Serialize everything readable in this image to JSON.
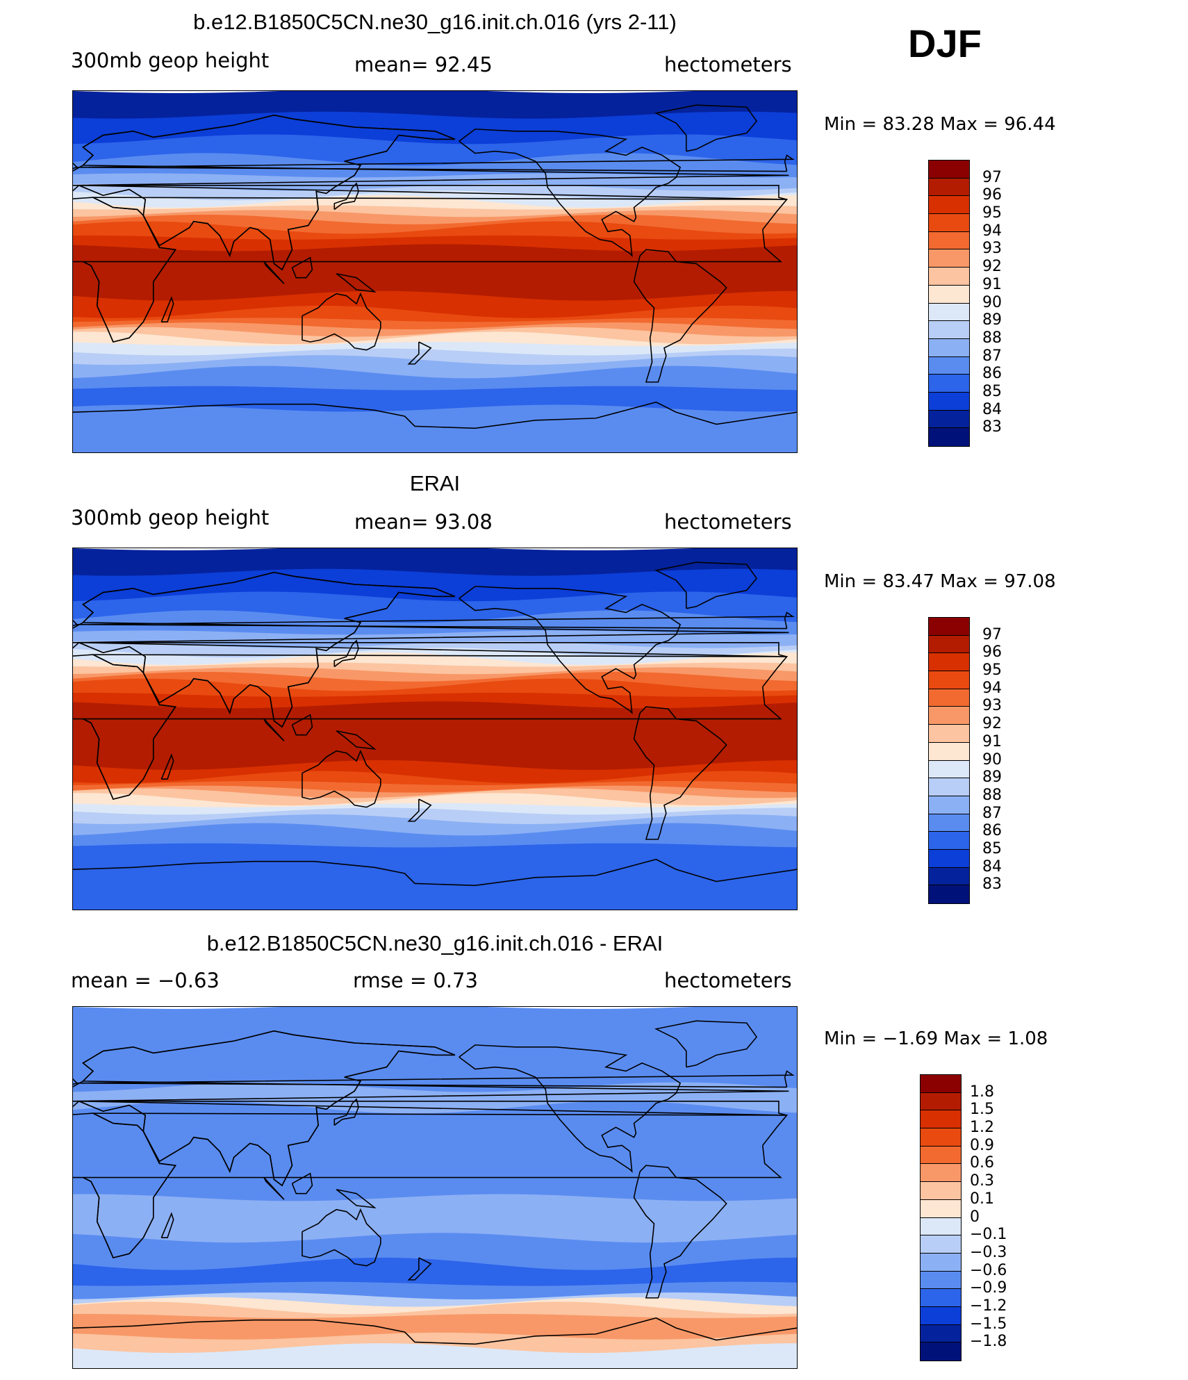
{
  "season": "DJF",
  "panels": [
    {
      "id": "model",
      "title": "b.e12.B1850C5CN.ne30_g16.init.ch.016 (yrs 2-11)",
      "left_label": "300mb geop height",
      "center_label": "mean=   92.45",
      "right_label": "hectometers",
      "min_max": "Min =    83.28  Max =    96.44",
      "colorbar": {
        "labels": [
          "97",
          "96",
          "95",
          "94",
          "93",
          "92",
          "91",
          "90",
          "89",
          "88",
          "87",
          "86",
          "85",
          "84",
          "83"
        ],
        "colors": [
          "#8b0000",
          "#b31c00",
          "#d83000",
          "#e84a10",
          "#f26a30",
          "#f89868",
          "#fcc4a0",
          "#fde6d2",
          "#dce8f8",
          "#b8cef6",
          "#8cb0f4",
          "#5a8cf0",
          "#2c64ea",
          "#0c3ed8",
          "#04229c",
          "#00127a"
        ]
      },
      "bands": [
        {
          "lat": 90,
          "color": "#04229c"
        },
        {
          "lat": 78,
          "color": "#0c3ed8"
        },
        {
          "lat": 66,
          "color": "#2c64ea"
        },
        {
          "lat": 56,
          "color": "#5a8cf0"
        },
        {
          "lat": 48,
          "color": "#8cb0f4"
        },
        {
          "lat": 42,
          "color": "#b8cef6"
        },
        {
          "lat": 38,
          "color": "#dce8f8"
        },
        {
          "lat": 35,
          "color": "#fde6d2"
        },
        {
          "lat": 32,
          "color": "#fcc4a0"
        },
        {
          "lat": 29,
          "color": "#f89868"
        },
        {
          "lat": 26,
          "color": "#f26a30"
        },
        {
          "lat": 22,
          "color": "#e84a10"
        },
        {
          "lat": 17,
          "color": "#d83000"
        },
        {
          "lat": 12,
          "color": "#b31c00"
        },
        {
          "lat": -12,
          "color": "#d83000"
        },
        {
          "lat": -20,
          "color": "#e84a10"
        },
        {
          "lat": -24,
          "color": "#f26a30"
        },
        {
          "lat": -27,
          "color": "#f89868"
        },
        {
          "lat": -30,
          "color": "#fcc4a0"
        },
        {
          "lat": -33,
          "color": "#fde6d2"
        },
        {
          "lat": -36,
          "color": "#dce8f8"
        },
        {
          "lat": -40,
          "color": "#b8cef6"
        },
        {
          "lat": -44,
          "color": "#8cb0f4"
        },
        {
          "lat": -50,
          "color": "#5a8cf0"
        },
        {
          "lat": -58,
          "color": "#2c64ea"
        },
        {
          "lat": -68,
          "color": "#5a8cf0"
        }
      ]
    },
    {
      "id": "obs",
      "title": "ERAI",
      "left_label": "300mb geop height",
      "center_label": "mean=   93.08",
      "right_label": "hectometers",
      "min_max": "Min =    83.47  Max =    97.08",
      "colorbar": {
        "labels": [
          "97",
          "96",
          "95",
          "94",
          "93",
          "92",
          "91",
          "90",
          "89",
          "88",
          "87",
          "86",
          "85",
          "84",
          "83"
        ],
        "colors": [
          "#8b0000",
          "#b31c00",
          "#d83000",
          "#e84a10",
          "#f26a30",
          "#f89868",
          "#fcc4a0",
          "#fde6d2",
          "#dce8f8",
          "#b8cef6",
          "#8cb0f4",
          "#5a8cf0",
          "#2c64ea",
          "#0c3ed8",
          "#04229c",
          "#00127a"
        ]
      },
      "bands": [
        {
          "lat": 90,
          "color": "#04229c"
        },
        {
          "lat": 78,
          "color": "#0c3ed8"
        },
        {
          "lat": 66,
          "color": "#2c64ea"
        },
        {
          "lat": 56,
          "color": "#5a8cf0"
        },
        {
          "lat": 48,
          "color": "#8cb0f4"
        },
        {
          "lat": 42,
          "color": "#b8cef6"
        },
        {
          "lat": 38,
          "color": "#dce8f8"
        },
        {
          "lat": 35,
          "color": "#fde6d2"
        },
        {
          "lat": 32,
          "color": "#fcc4a0"
        },
        {
          "lat": 29,
          "color": "#f89868"
        },
        {
          "lat": 26,
          "color": "#f26a30"
        },
        {
          "lat": 22,
          "color": "#e84a10"
        },
        {
          "lat": 17,
          "color": "#d83000"
        },
        {
          "lat": 12,
          "color": "#b31c00"
        },
        {
          "lat": -18,
          "color": "#d83000"
        },
        {
          "lat": -24,
          "color": "#e84a10"
        },
        {
          "lat": -27,
          "color": "#f26a30"
        },
        {
          "lat": -30,
          "color": "#f89868"
        },
        {
          "lat": -32,
          "color": "#fcc4a0"
        },
        {
          "lat": -35,
          "color": "#fde6d2"
        },
        {
          "lat": -38,
          "color": "#dce8f8"
        },
        {
          "lat": -41,
          "color": "#b8cef6"
        },
        {
          "lat": -45,
          "color": "#8cb0f4"
        },
        {
          "lat": -50,
          "color": "#5a8cf0"
        },
        {
          "lat": -58,
          "color": "#2c64ea"
        },
        {
          "lat": -68,
          "color": "#2c64ea"
        }
      ]
    },
    {
      "id": "diff",
      "title": "b.e12.B1850C5CN.ne30_g16.init.ch.016 - ERAI",
      "left_label": "mean =    −0.63",
      "center_label": "rmse =     0.73",
      "right_label": "hectometers",
      "min_max": "Min =    −1.69  Max =     1.08",
      "colorbar": {
        "labels": [
          "1.8",
          "1.5",
          "1.2",
          "0.9",
          "0.6",
          "0.3",
          "0.1",
          "0",
          "−0.1",
          "−0.3",
          "−0.6",
          "−0.9",
          "−1.2",
          "−1.5",
          "−1.8"
        ],
        "colors": [
          "#8b0000",
          "#b31c00",
          "#d83000",
          "#e84a10",
          "#f26a30",
          "#f89868",
          "#fcc4a0",
          "#fde6d2",
          "#dce8f8",
          "#b8cef6",
          "#8cb0f4",
          "#5a8cf0",
          "#2c64ea",
          "#0c3ed8",
          "#04229c",
          "#00127a"
        ]
      },
      "bands": [
        {
          "lat": 90,
          "color": "#5a8cf0"
        },
        {
          "lat": 62,
          "color": "#5a8cf0"
        },
        {
          "lat": 50,
          "color": "#8cb0f4"
        },
        {
          "lat": 40,
          "color": "#5a8cf0"
        },
        {
          "lat": 20,
          "color": "#5a8cf0"
        },
        {
          "lat": -5,
          "color": "#8cb0f4"
        },
        {
          "lat": -25,
          "color": "#5a8cf0"
        },
        {
          "lat": -38,
          "color": "#2c64ea"
        },
        {
          "lat": -48,
          "color": "#5a8cf0"
        },
        {
          "lat": -54,
          "color": "#b8cef6"
        },
        {
          "lat": -57,
          "color": "#fde6d2"
        },
        {
          "lat": -60,
          "color": "#fcc4a0"
        },
        {
          "lat": -64,
          "color": "#f89868"
        },
        {
          "lat": -74,
          "color": "#fcc4a0"
        },
        {
          "lat": -80,
          "color": "#dce8f8"
        }
      ]
    }
  ]
}
